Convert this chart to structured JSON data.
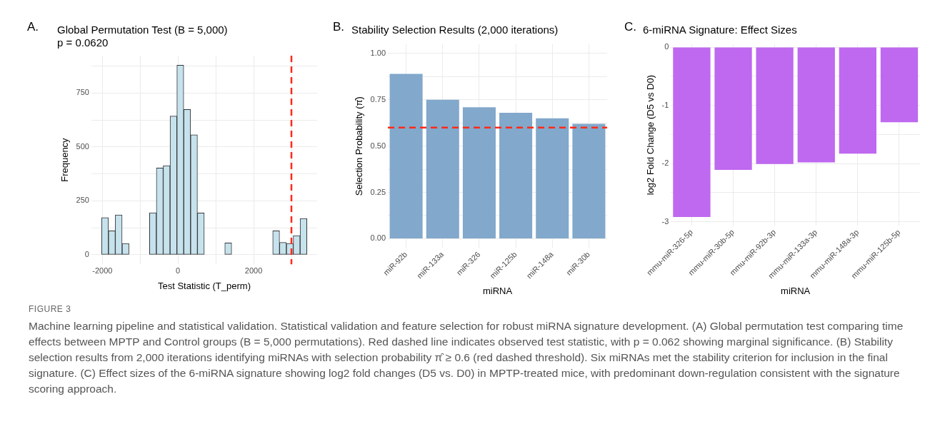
{
  "chart_data": [
    {
      "type": "histogram",
      "title": "Global Permutation Test (B = 5,000)",
      "subtitle": "p = 0.0620",
      "xlabel": "Test Statistic (T_perm)",
      "ylabel": "Frequency",
      "annotations": [
        "A."
      ],
      "bins": [
        -2020,
        -1839,
        -1658,
        -1477,
        -1296,
        -1115,
        -934,
        -753,
        -572,
        -391,
        -210,
        -29,
        152,
        333,
        514,
        695,
        876,
        1057,
        1238,
        1419,
        1600,
        1781,
        1962,
        2143,
        2324,
        2505,
        2686,
        2867,
        3048,
        3229,
        3410
      ],
      "values": [
        172,
        111,
        185,
        52,
        0,
        0,
        0,
        195,
        402,
        413,
        643,
        879,
        674,
        556,
        194,
        0,
        0,
        0,
        55,
        0,
        0,
        0,
        0,
        0,
        0,
        111,
        57,
        52,
        89,
        168
      ],
      "color": "#c6e2ed",
      "xlim": [
        -2290,
        3680
      ],
      "xticks": [
        -2000,
        {
          "value": -1000,
          "label": null
        },
        0,
        {
          "value": 1000,
          "label": null
        },
        2000,
        {
          "value": 3000,
          "label": null
        }
      ],
      "ylim": [
        -44,
        923
      ],
      "yticks": [
        0,
        {
          "value": 125,
          "label": null
        },
        250,
        {
          "value": 375,
          "label": null
        },
        500,
        {
          "value": 625,
          "label": null
        },
        750,
        {
          "value": 875,
          "label": null
        }
      ],
      "ref_lines": [
        {
          "axis": "x",
          "value": 3000,
          "color": "#ff2a1a",
          "line_style": "dashed"
        }
      ],
      "grid": true,
      "legend": false
    },
    {
      "type": "bar",
      "title": "Stability Selection Results (2,000 iterations)",
      "xlabel": "miRNA",
      "ylabel": "Selection Probability (π̂)",
      "annotations": [
        "B."
      ],
      "categories": [
        "miR-92b",
        "miR-133a",
        "miR-326",
        "miR-125b",
        "miR-148a",
        "miR-30b"
      ],
      "values": [
        0.89,
        0.75,
        0.71,
        0.68,
        0.65,
        0.62
      ],
      "color": "#82a8cb",
      "ylim": [
        -0.05,
        1.05
      ],
      "yticks": [
        {
          "value": 0,
          "label": "0.00"
        },
        {
          "value": 0.125,
          "label": null
        },
        {
          "value": 0.25,
          "label": "0.25"
        },
        {
          "value": 0.375,
          "label": null
        },
        {
          "value": 0.5,
          "label": "0.50"
        },
        {
          "value": 0.625,
          "label": null
        },
        {
          "value": 0.75,
          "label": "0.75"
        },
        {
          "value": 0.875,
          "label": null
        },
        {
          "value": 1,
          "label": "1.00"
        }
      ],
      "ref_lines": [
        {
          "axis": "y",
          "value": 0.6,
          "color": "#ff2a1a",
          "line_style": "dashed"
        }
      ],
      "grid": true,
      "legend": false
    },
    {
      "type": "bar",
      "title": "6-miRNA Signature: Effect Sizes",
      "xlabel": "miRNA",
      "ylabel": "log2 Fold Change (D5 vs D0)",
      "annotations": [
        "C."
      ],
      "categories": [
        "mmu-miR-326-5p",
        "mmu-miR-30b-5p",
        "mmu-miR-92b-3p",
        "mmu-miR-133a-3p",
        "mmu-miR-148a-3p",
        "mmu-miR-125b-5p"
      ],
      "values": [
        -2.92,
        -2.11,
        -2.01,
        -1.98,
        -1.83,
        -1.29
      ],
      "color": "#bf68f0",
      "ylim": [
        -3.07,
        0.05
      ],
      "yticks": [
        -3,
        {
          "value": -2.5,
          "label": null
        },
        -2,
        {
          "value": -1.5,
          "label": null
        },
        -1,
        {
          "value": -0.5,
          "label": null
        },
        0
      ],
      "grid": true,
      "legend": false
    },
    {
      "type": "other",
      "title": "FIGURE 3",
      "annotations": [
        "Machine learning pipeline and statistical validation. Statistical validation and feature selection for robust miRNA signature development. (A) Global permutation test comparing time effects between MPTP and Control groups (B = 5,000 permutations). Red dashed line indicates observed test statistic, with p = 0.062 showing marginal significance. (B) Stability selection results from 2,000 iterations identifying miRNAs with selection probability π̂ ≥ 0.6 (red dashed threshold). Six miRNAs met the stability criterion for inclusion in the final signature. (C) Effect sizes of the 6-miRNA signature showing log2 fold changes (D5 vs. D0) in MPTP-treated mice, with predominant down-regulation consistent with the signature scoring approach."
      ]
    }
  ]
}
